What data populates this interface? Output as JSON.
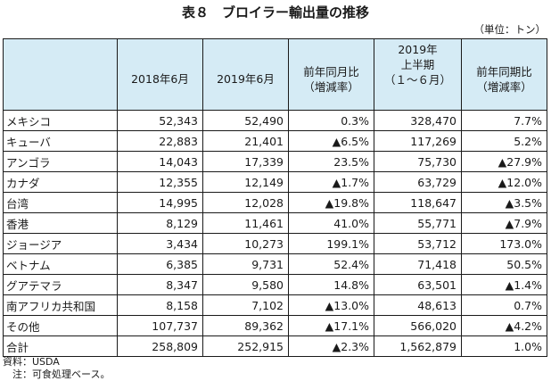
{
  "title": "表８　ブロイラー輸出量の推移",
  "unit": "（単位：トン）",
  "headers": {
    "blank": "",
    "col1": "2018年6月",
    "col2": "2019年6月",
    "col3_line1": "前年同月比",
    "col3_line2": "（増減率）",
    "col4_line1": "2019年",
    "col4_line2": "上半期",
    "col4_line3": "（１～６月）",
    "col5_line1": "前年同期比",
    "col5_line2": "（増減率）"
  },
  "rows": [
    {
      "name": "メキシコ",
      "y2018_jun": "52,343",
      "y2019_jun": "52,490",
      "mom": "0.3%",
      "h1_2019": "328,470",
      "yoy": "7.7%"
    },
    {
      "name": "キューバ",
      "y2018_jun": "22,883",
      "y2019_jun": "21,401",
      "mom": "▲6.5%",
      "h1_2019": "117,269",
      "yoy": "5.2%"
    },
    {
      "name": "アンゴラ",
      "y2018_jun": "14,043",
      "y2019_jun": "17,339",
      "mom": "23.5%",
      "h1_2019": "75,730",
      "yoy": "▲27.9%"
    },
    {
      "name": "カナダ",
      "y2018_jun": "12,355",
      "y2019_jun": "12,149",
      "mom": "▲1.7%",
      "h1_2019": "63,729",
      "yoy": "▲12.0%"
    },
    {
      "name": "台湾",
      "y2018_jun": "14,995",
      "y2019_jun": "12,028",
      "mom": "▲19.8%",
      "h1_2019": "118,647",
      "yoy": "▲3.5%"
    },
    {
      "name": "香港",
      "y2018_jun": "8,129",
      "y2019_jun": "11,461",
      "mom": "41.0%",
      "h1_2019": "55,771",
      "yoy": "▲7.9%"
    },
    {
      "name": "ジョージア",
      "y2018_jun": "3,434",
      "y2019_jun": "10,273",
      "mom": "199.1%",
      "h1_2019": "53,712",
      "yoy": "173.0%"
    },
    {
      "name": "ベトナム",
      "y2018_jun": "6,385",
      "y2019_jun": "9,731",
      "mom": "52.4%",
      "h1_2019": "71,418",
      "yoy": "50.5%"
    },
    {
      "name": "グアテマラ",
      "y2018_jun": "8,347",
      "y2019_jun": "9,580",
      "mom": "14.8%",
      "h1_2019": "63,501",
      "yoy": "▲1.4%"
    },
    {
      "name": "南アフリカ共和国",
      "y2018_jun": "8,158",
      "y2019_jun": "7,102",
      "mom": "▲13.0%",
      "h1_2019": "48,613",
      "yoy": "0.7%"
    },
    {
      "name": "その他",
      "y2018_jun": "107,737",
      "y2019_jun": "89,362",
      "mom": "▲17.1%",
      "h1_2019": "566,020",
      "yoy": "▲4.2%"
    },
    {
      "name": "合計",
      "y2018_jun": "258,809",
      "y2019_jun": "252,915",
      "mom": "▲2.3%",
      "h1_2019": "1,562,879",
      "yoy": "1.0%"
    }
  ],
  "source": "資料：USDA",
  "note": "注：可食処理ベース。"
}
